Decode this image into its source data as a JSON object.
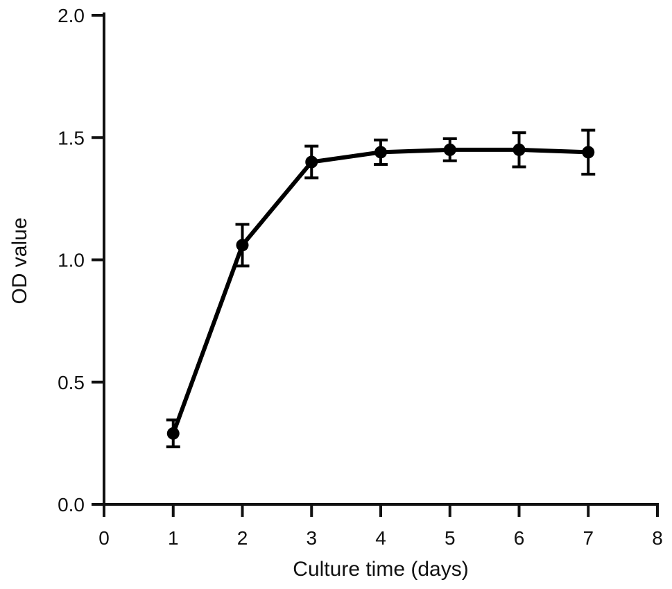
{
  "chart_data": {
    "type": "line",
    "title": "",
    "xlabel": "Culture time (days)",
    "ylabel": "OD value",
    "xlim": [
      0,
      8
    ],
    "ylim": [
      0.0,
      2.0
    ],
    "x_ticks": [
      0,
      1,
      2,
      3,
      4,
      5,
      6,
      7,
      8
    ],
    "x_tick_labels": [
      "0",
      "1",
      "2",
      "3",
      "4",
      "5",
      "6",
      "7",
      "8"
    ],
    "y_ticks": [
      0.0,
      0.5,
      1.0,
      1.5,
      2.0
    ],
    "y_tick_labels": [
      "0.0",
      "0.5",
      "1.0",
      "1.5",
      "2.0"
    ],
    "grid": false,
    "legend": "none",
    "series": [
      {
        "x": [
          1,
          2,
          3,
          4,
          5,
          6,
          7
        ],
        "y": [
          0.29,
          1.06,
          1.4,
          1.44,
          1.45,
          1.45,
          1.44
        ],
        "error": [
          0.055,
          0.085,
          0.065,
          0.05,
          0.045,
          0.07,
          0.09
        ],
        "color": "#000000"
      }
    ]
  }
}
